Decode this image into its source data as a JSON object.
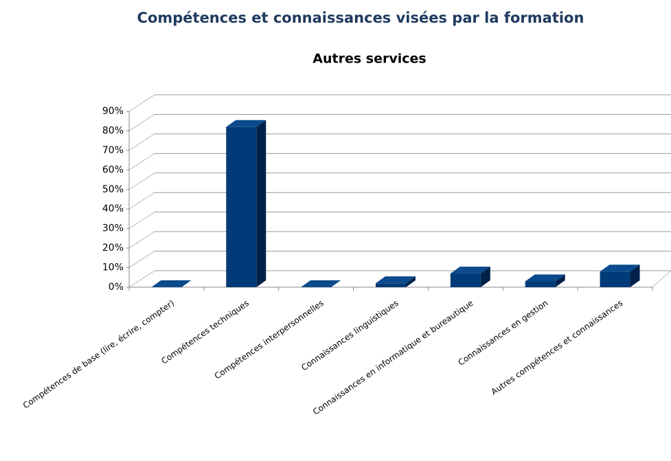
{
  "chart_data": {
    "type": "bar3d",
    "title": "Compétences et connaissances visées par la formation",
    "subtitle": "Autres services",
    "categories": [
      "Compétences de base (lire, écrire, compter)",
      "Compétences techniques",
      "Compétences interpersonnelles",
      "Connaissances linguistiques",
      "Connaissances en informatique et bureautique",
      "Connaissances en gestion",
      "Autres compétences et connaissances"
    ],
    "values": [
      0,
      82,
      0,
      2,
      7,
      3,
      8
    ],
    "color": "#003a78",
    "ylim": [
      0,
      90
    ],
    "yticks": [
      {
        "value": 0,
        "label": "0%"
      },
      {
        "value": 10,
        "label": "10%"
      },
      {
        "value": 20,
        "label": "20%"
      },
      {
        "value": 30,
        "label": "30%"
      },
      {
        "value": 40,
        "label": "40%"
      },
      {
        "value": 50,
        "label": "50%"
      },
      {
        "value": 60,
        "label": "60%"
      },
      {
        "value": 70,
        "label": "70%"
      },
      {
        "value": 80,
        "label": "80%"
      },
      {
        "value": 90,
        "label": "90%"
      }
    ],
    "grid": true
  }
}
